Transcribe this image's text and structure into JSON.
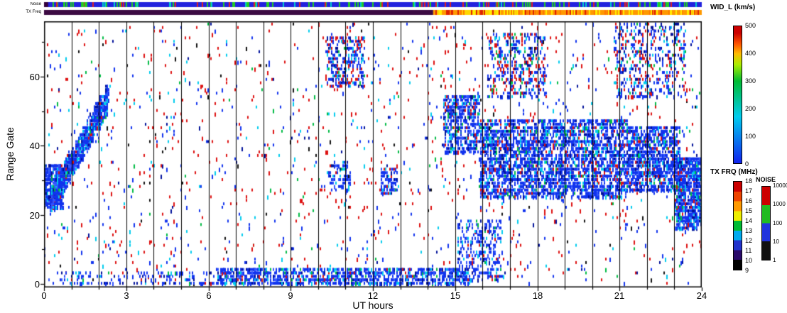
{
  "strips": {
    "noise": {
      "label": "Noise",
      "segments": [
        {
          "x": [
            0,
            24
          ],
          "color": "#2222dd"
        },
        {
          "x": [
            0,
            0.15
          ],
          "color": "#33003c"
        }
      ],
      "flecks": {
        "n": 150,
        "x": [
          0,
          24
        ],
        "colors": [
          [
            "#22cc22",
            0.5
          ],
          [
            "#dd2222",
            0.28
          ],
          [
            "#00cccc",
            0.22
          ]
        ]
      }
    },
    "txfreq": {
      "label": "TX Freq",
      "segments": [
        {
          "x": [
            0,
            14.2
          ],
          "color": "#3c0a42"
        },
        {
          "x": [
            14.2,
            24
          ],
          "color": "#ff9900"
        },
        {
          "x": [
            15.25,
            16.65
          ],
          "color": "#ffd700"
        }
      ],
      "flecks": {
        "n": 120,
        "x": [
          14.2,
          24
        ],
        "colors": [
          [
            "#ffee00",
            0.45
          ],
          [
            "#dd2200",
            0.3
          ],
          [
            "#ff7700",
            0.25
          ]
        ]
      }
    }
  },
  "colorbars": {
    "wid": {
      "title": "WID_L (km/s)",
      "ticks": [
        500,
        400,
        300,
        200,
        100,
        0
      ],
      "gradient": [
        [
          "#1122ee",
          0
        ],
        [
          "#00ccee",
          34
        ],
        [
          "#00bb33",
          60
        ],
        [
          "#aaee00",
          72
        ],
        [
          "#ffbb00",
          80
        ],
        [
          "#ff5500",
          87
        ],
        [
          "#cc0000",
          95
        ],
        [
          "#cc0000",
          100
        ]
      ]
    },
    "txfrq": {
      "title": "TX FRQ (MHz)",
      "ticks": [
        18,
        17,
        16,
        15,
        14,
        13,
        12,
        11,
        10,
        9
      ],
      "blocks": [
        "#000000",
        "#2a0a6a",
        "#2233cc",
        "#00aaee",
        "#00bb33",
        "#eeee00",
        "#ff9900",
        "#ee4400",
        "#cc0000"
      ]
    },
    "noise": {
      "title": "NOISE",
      "ticks": [
        "10000",
        "1000",
        "100",
        "10",
        "1"
      ],
      "blocks": [
        "#111111",
        "#2233dd",
        "#22bb22",
        "#cc0000"
      ]
    }
  },
  "chart_data": {
    "type": "heatmap",
    "xlabel": "UT hours",
    "ylabel": "Range Gate",
    "xlim": [
      0,
      24
    ],
    "ylim": [
      0,
      77
    ],
    "xticks": [
      0,
      3,
      6,
      9,
      12,
      15,
      18,
      21,
      24
    ],
    "yticks": [
      0,
      20,
      40,
      60
    ],
    "hour_gridlines": true,
    "value_legend": "point color encodes WID_L km/s: blue~0, cyan~100, green~200, red~500",
    "palettes": {
      "dense": [
        [
          "#1133ee",
          0.6
        ],
        [
          "#3355ff",
          0.1
        ],
        [
          "#00ccee",
          0.1
        ],
        [
          "#00bb44",
          0.04
        ],
        [
          "#dd1111",
          0.06
        ],
        [
          "#001199",
          0.1
        ]
      ],
      "mixhigh": [
        [
          "#1133ee",
          0.45
        ],
        [
          "#dd1111",
          0.25
        ],
        [
          "#00ccee",
          0.13
        ],
        [
          "#00bb44",
          0.05
        ],
        [
          "#001199",
          0.12
        ]
      ],
      "sparse": [
        [
          "#dd1111",
          0.4
        ],
        [
          "#1133ee",
          0.3
        ],
        [
          "#00ccee",
          0.12
        ],
        [
          "#00bb44",
          0.06
        ],
        [
          "#001199",
          0.06
        ],
        [
          "#111111",
          0.06
        ]
      ]
    },
    "background_noise": {
      "n": 1500,
      "x": [
        0,
        24
      ],
      "gates": [
        0,
        76
      ],
      "palette": "sparse"
    },
    "clusters": [
      {
        "name": "dawn-blob",
        "x": [
          0.0,
          0.7
        ],
        "gates": [
          22,
          34
        ],
        "n": 420,
        "palette": "dense"
      },
      {
        "name": "dawn-diagonal",
        "x": [
          0.2,
          2.35
        ],
        "gates": [
          24,
          54
        ],
        "n": 1150,
        "palette": "dense",
        "diagonal": true,
        "spread": 5
      },
      {
        "name": "bottom-band",
        "x": [
          6.3,
          15.6
        ],
        "gates": [
          0,
          4
        ],
        "n": 1050,
        "palette": "dense"
      },
      {
        "name": "bottom-band-early",
        "x": [
          0.2,
          6.3
        ],
        "gates": [
          0,
          3
        ],
        "n": 160,
        "palette": "dense"
      },
      {
        "name": "rise-hour15",
        "x": [
          15.1,
          16.7
        ],
        "gates": [
          1,
          18
        ],
        "n": 300,
        "palette": "dense"
      },
      {
        "name": "pre-evening-upper",
        "x": [
          14.6,
          15.9
        ],
        "gates": [
          38,
          54
        ],
        "n": 480,
        "palette": "dense"
      },
      {
        "name": "evening-main",
        "x": [
          15.9,
          21.3
        ],
        "gates": [
          25,
          47
        ],
        "n": 2900,
        "palette": "dense"
      },
      {
        "name": "late-cluster",
        "x": [
          21.3,
          23.2
        ],
        "gates": [
          27,
          45
        ],
        "n": 1000,
        "palette": "dense"
      },
      {
        "name": "end-cluster",
        "x": [
          23.05,
          24.0
        ],
        "gates": [
          16,
          36
        ],
        "n": 820,
        "palette": "dense"
      },
      {
        "name": "midday-high",
        "x": [
          10.3,
          11.7
        ],
        "gates": [
          57,
          71
        ],
        "n": 300,
        "palette": "mixhigh"
      },
      {
        "name": "evening-high",
        "x": [
          16.2,
          18.3
        ],
        "gates": [
          54,
          72
        ],
        "n": 400,
        "palette": "mixhigh"
      },
      {
        "name": "late-high",
        "x": [
          20.8,
          23.4
        ],
        "gates": [
          54,
          75
        ],
        "n": 430,
        "palette": "mixhigh"
      },
      {
        "name": "midday-patch",
        "x": [
          10.4,
          11.2
        ],
        "gates": [
          27,
          35
        ],
        "n": 80,
        "palette": "dense"
      },
      {
        "name": "noon-patch",
        "x": [
          12.3,
          12.9
        ],
        "gates": [
          26,
          33
        ],
        "n": 90,
        "palette": "dense"
      }
    ]
  }
}
